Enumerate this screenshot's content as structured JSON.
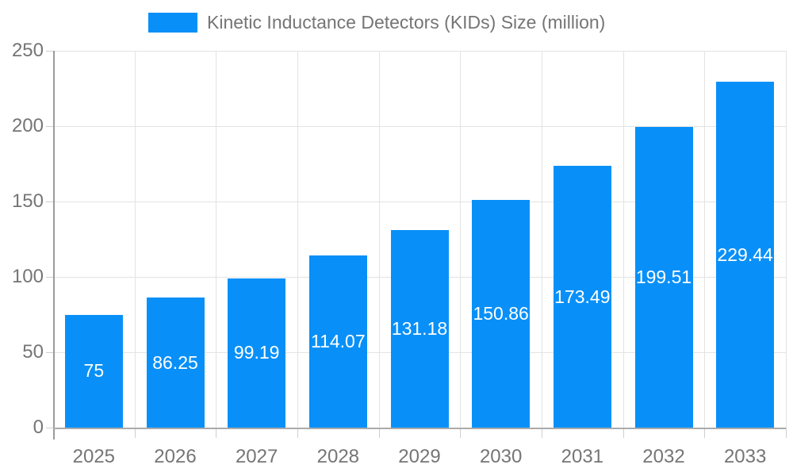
{
  "legend": {
    "label": "Kinetic Inductance Detectors (KIDs) Size (million)",
    "swatch_color": "#0990f8"
  },
  "chart_data": {
    "type": "bar",
    "title": "Kinetic Inductance Detectors (KIDs) Size (million)",
    "categories": [
      "2025",
      "2026",
      "2027",
      "2028",
      "2029",
      "2030",
      "2031",
      "2032",
      "2033"
    ],
    "values": [
      75,
      86.25,
      99.19,
      114.07,
      131.18,
      150.86,
      173.49,
      199.51,
      229.44
    ],
    "value_labels": [
      "75",
      "86.25",
      "99.19",
      "114.07",
      "131.18",
      "150.86",
      "173.49",
      "199.51",
      "229.44"
    ],
    "xlabel": "",
    "ylabel": "",
    "ylim": [
      0,
      250
    ],
    "yticks": [
      0,
      50,
      100,
      150,
      200,
      250
    ],
    "grid": true,
    "legend_position": "top-center",
    "colors": {
      "bar": "#0990f8",
      "bar_value_text": "#ffffff",
      "grid_line": "#e3e3e3",
      "axis_line": "#a5a5a5",
      "tick_mark": "#cfcfcf",
      "axis_text": "#757575",
      "legend_text": "#757575",
      "background": "#ffffff"
    }
  }
}
